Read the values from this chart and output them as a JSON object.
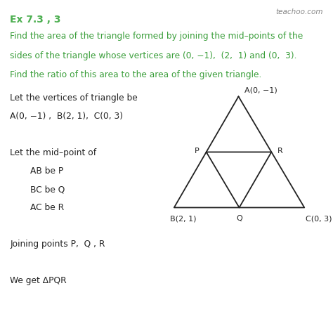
{
  "title": "Ex 7.3 , 3",
  "title_color": "#4CAF50",
  "background_color": "#ffffff",
  "watermark": "teachoo.com",
  "problem_line1": "Find the area of the triangle formed by joining the mid–points of the",
  "problem_line2": "sides of the triangle whose vertices are (0, −1),  (2,  1) and (0,  3).",
  "problem_line3": "Find the ratio of this area to the area of the given triangle.",
  "text_color": "#222222",
  "green_color": "#3a9e3a",
  "line_color": "#222222",
  "body_lines": [
    {
      "text": "Let the vertices of triangle be",
      "indent": 0,
      "bold": false
    },
    {
      "text": "A(0, −1) ,  B(2, 1),  C(0, 3)",
      "indent": 0,
      "bold": false
    },
    {
      "text": "",
      "indent": 0,
      "bold": false
    },
    {
      "text": "Let the mid–point of",
      "indent": 0,
      "bold": false
    },
    {
      "text": "AB be P",
      "indent": 1,
      "bold": false
    },
    {
      "text": "BC be Q",
      "indent": 1,
      "bold": false
    },
    {
      "text": "AC be R",
      "indent": 1,
      "bold": false
    },
    {
      "text": "",
      "indent": 0,
      "bold": false
    },
    {
      "text": "Joining points P,  Q , R",
      "indent": 0,
      "bold": false
    },
    {
      "text": "",
      "indent": 0,
      "bold": false
    },
    {
      "text": "We get ΔPQR",
      "indent": 0,
      "bold": false
    }
  ]
}
